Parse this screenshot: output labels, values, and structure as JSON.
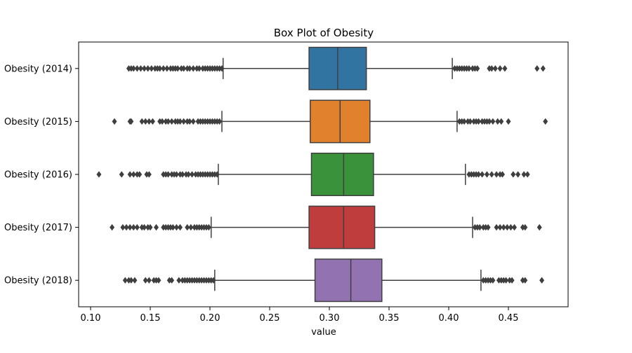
{
  "chart_data": {
    "type": "box",
    "orientation": "horizontal",
    "title": "Box Plot of Obesity",
    "xlabel": "value",
    "ylabel": "",
    "xlim": [
      0.09,
      0.5
    ],
    "xticks": [
      0.1,
      0.15,
      0.2,
      0.25,
      0.3,
      0.35,
      0.4,
      0.45
    ],
    "xtick_labels": [
      "0.10",
      "0.15",
      "0.20",
      "0.25",
      "0.30",
      "0.35",
      "0.40",
      "0.45"
    ],
    "grid": false,
    "categories": [
      "Obesity (2014)",
      "Obesity (2015)",
      "Obesity (2016)",
      "Obesity (2017)",
      "Obesity (2018)"
    ],
    "series": [
      {
        "name": "Obesity (2014)",
        "color": "#3274a1",
        "whisker_low": 0.211,
        "q1": 0.283,
        "median": 0.307,
        "q3": 0.331,
        "whisker_high": 0.403,
        "outliers": [
          0.132,
          0.134,
          0.136,
          0.139,
          0.142,
          0.145,
          0.148,
          0.151,
          0.154,
          0.156,
          0.158,
          0.161,
          0.164,
          0.167,
          0.169,
          0.171,
          0.173,
          0.176,
          0.178,
          0.181,
          0.183,
          0.186,
          0.189,
          0.191,
          0.194,
          0.196,
          0.198,
          0.2,
          0.202,
          0.204,
          0.206,
          0.208,
          0.21,
          0.405,
          0.407,
          0.409,
          0.411,
          0.413,
          0.415,
          0.417,
          0.42,
          0.422,
          0.424,
          0.434,
          0.436,
          0.439,
          0.443,
          0.447,
          0.474,
          0.479
        ]
      },
      {
        "name": "Obesity (2015)",
        "color": "#e1812c",
        "whisker_low": 0.21,
        "q1": 0.284,
        "median": 0.309,
        "q3": 0.334,
        "whisker_high": 0.407,
        "outliers": [
          0.12,
          0.133,
          0.134,
          0.143,
          0.146,
          0.149,
          0.152,
          0.158,
          0.16,
          0.163,
          0.165,
          0.168,
          0.171,
          0.173,
          0.175,
          0.178,
          0.181,
          0.183,
          0.186,
          0.19,
          0.192,
          0.194,
          0.196,
          0.198,
          0.2,
          0.202,
          0.204,
          0.206,
          0.208,
          0.409,
          0.411,
          0.413,
          0.416,
          0.418,
          0.421,
          0.423,
          0.425,
          0.428,
          0.43,
          0.432,
          0.434,
          0.437,
          0.441,
          0.444,
          0.45,
          0.481
        ]
      },
      {
        "name": "Obesity (2016)",
        "color": "#3a923a",
        "whisker_low": 0.207,
        "q1": 0.285,
        "median": 0.312,
        "q3": 0.337,
        "whisker_high": 0.414,
        "outliers": [
          0.107,
          0.126,
          0.133,
          0.136,
          0.139,
          0.141,
          0.147,
          0.149,
          0.161,
          0.163,
          0.165,
          0.168,
          0.17,
          0.172,
          0.175,
          0.177,
          0.18,
          0.182,
          0.185,
          0.188,
          0.19,
          0.192,
          0.194,
          0.196,
          0.198,
          0.2,
          0.202,
          0.204,
          0.206,
          0.417,
          0.419,
          0.421,
          0.423,
          0.425,
          0.428,
          0.432,
          0.436,
          0.44,
          0.443,
          0.445,
          0.454,
          0.458,
          0.463,
          0.466
        ]
      },
      {
        "name": "Obesity (2017)",
        "color": "#c03d3e",
        "whisker_low": 0.201,
        "q1": 0.283,
        "median": 0.312,
        "q3": 0.338,
        "whisker_high": 0.42,
        "outliers": [
          0.118,
          0.127,
          0.13,
          0.133,
          0.136,
          0.139,
          0.143,
          0.145,
          0.148,
          0.15,
          0.155,
          0.161,
          0.163,
          0.165,
          0.167,
          0.169,
          0.172,
          0.175,
          0.181,
          0.184,
          0.187,
          0.189,
          0.191,
          0.193,
          0.195,
          0.197,
          0.199,
          0.422,
          0.424,
          0.426,
          0.429,
          0.431,
          0.433,
          0.44,
          0.443,
          0.446,
          0.449,
          0.452,
          0.455,
          0.462,
          0.464,
          0.476
        ]
      },
      {
        "name": "Obesity (2018)",
        "color": "#9372b2",
        "whisker_low": 0.204,
        "q1": 0.288,
        "median": 0.318,
        "q3": 0.344,
        "whisker_high": 0.427,
        "outliers": [
          0.129,
          0.132,
          0.134,
          0.137,
          0.146,
          0.149,
          0.153,
          0.155,
          0.157,
          0.166,
          0.168,
          0.174,
          0.177,
          0.179,
          0.181,
          0.183,
          0.185,
          0.187,
          0.189,
          0.191,
          0.193,
          0.195,
          0.197,
          0.199,
          0.201,
          0.203,
          0.429,
          0.431,
          0.433,
          0.435,
          0.437,
          0.442,
          0.444,
          0.446,
          0.448,
          0.451,
          0.453,
          0.462,
          0.464,
          0.478
        ]
      }
    ]
  }
}
